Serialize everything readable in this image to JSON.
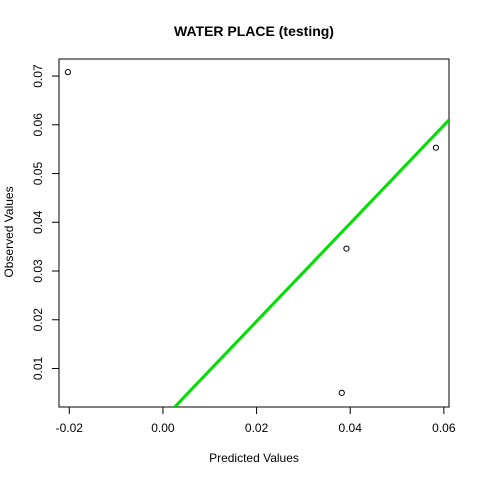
{
  "chart_data": {
    "type": "scatter",
    "title": "WATER PLACE (testing)",
    "xlabel": "Predicted Values",
    "ylabel": "Observed Values",
    "xlim": [
      -0.0222,
      0.0611
    ],
    "ylim": [
      0.0021,
      0.0735
    ],
    "x_ticks": [
      -0.02,
      0.0,
      0.02,
      0.04,
      0.06
    ],
    "x_tick_labels": [
      "-0.02",
      "0.00",
      "0.02",
      "0.04",
      "0.06"
    ],
    "y_ticks": [
      0.01,
      0.02,
      0.03,
      0.04,
      0.05,
      0.06,
      0.07
    ],
    "y_tick_labels": [
      "0.01",
      "0.02",
      "0.03",
      "0.04",
      "0.05",
      "0.06",
      "0.07"
    ],
    "grid": false,
    "points": [
      {
        "x": -0.0203,
        "y": 0.0708
      },
      {
        "x": 0.0583,
        "y": 0.0553
      },
      {
        "x": 0.0392,
        "y": 0.0346
      },
      {
        "x": 0.0382,
        "y": 0.005
      }
    ],
    "fit_line": {
      "from": {
        "x": 0.0025,
        "y": 0.0021
      },
      "to": {
        "x": 0.0611,
        "y": 0.061
      },
      "color": "#00e000"
    },
    "point_color": "#000000"
  }
}
